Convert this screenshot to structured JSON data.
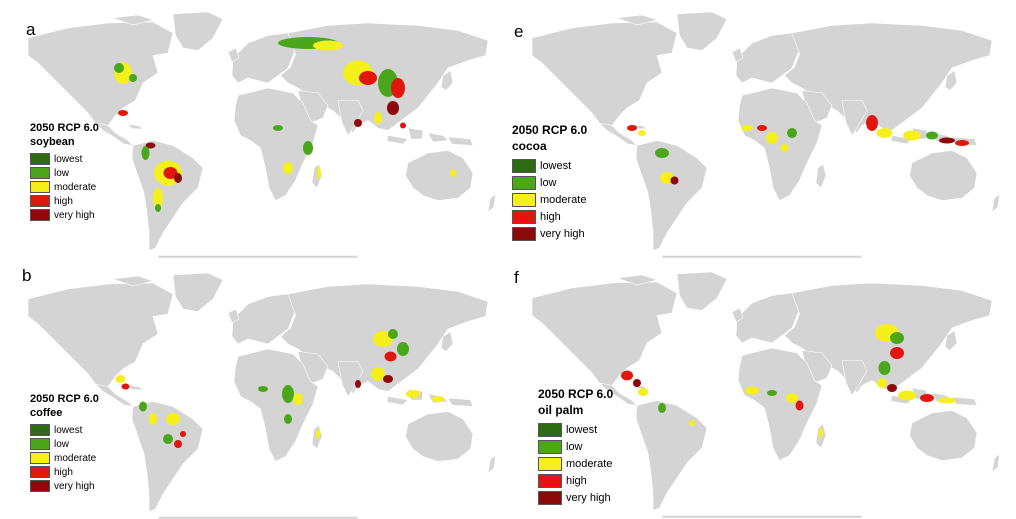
{
  "colors": {
    "lowest": "#2e6b12",
    "low": "#4aa71c",
    "moderate": "#f5ef1c",
    "high": "#e0160f",
    "very_high": "#8d0a0a",
    "land": "#d4d4d4",
    "border": "#ffffff"
  },
  "legend_items": [
    "lowest",
    "low",
    "moderate",
    "high",
    "very high"
  ],
  "panels": [
    {
      "letter": "a",
      "scenario": "2050 RCP 6.0",
      "crop": "soybean"
    },
    {
      "letter": "b",
      "scenario": "2050 RCP 6.0",
      "crop": "coffee"
    },
    {
      "letter": "e",
      "scenario": "2050 RCP 6.0",
      "crop": "cocoa"
    },
    {
      "letter": "f",
      "scenario": "2050 RCP 6.0",
      "crop": "oil palm"
    }
  ]
}
